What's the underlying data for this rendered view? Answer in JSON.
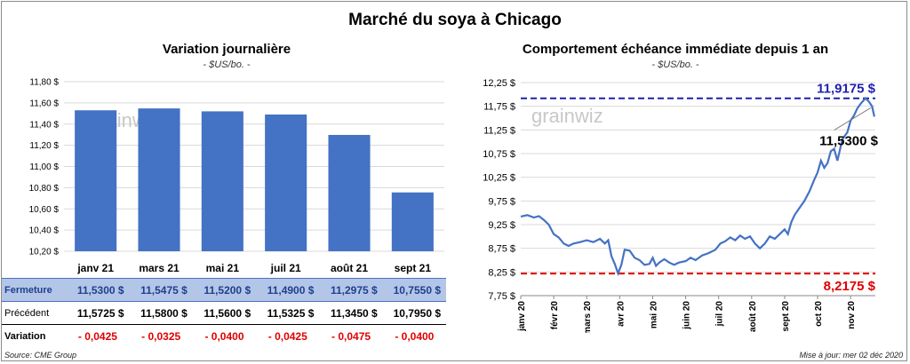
{
  "header": {
    "title": "Marché du soya à Chicago",
    "source": "Source: CME Group",
    "updated": "Mise à jour: mer 02 déc 2020"
  },
  "table": {
    "rows": [
      {
        "label": "Fermeture",
        "values": [
          "11,5300  $",
          "11,5475  $",
          "11,5200  $",
          "11,4900  $",
          "11,2975  $",
          "10,7550  $"
        ]
      },
      {
        "label": "Précédent",
        "values": [
          "11,5725  $",
          "11,5800  $",
          "11,5600  $",
          "11,5325  $",
          "11,3450  $",
          "10,7950  $"
        ]
      },
      {
        "label": "Variation",
        "values": [
          "- 0,0425",
          "- 0,0325",
          "- 0,0400",
          "- 0,0425",
          "- 0,0475",
          "- 0,0400"
        ]
      }
    ]
  },
  "colors": {
    "bar": "#4472c4",
    "line": "#4472c4",
    "high": "#2020b0",
    "low": "#e00000",
    "variation": "#e00000"
  },
  "chart_data": [
    {
      "type": "bar",
      "title": "Variation journalière",
      "subtitle": "- $US/bo. -",
      "watermark": "grainwiz",
      "categories": [
        "janv 21",
        "mars 21",
        "mai 21",
        "juil 21",
        "août 21",
        "sept 21"
      ],
      "values": [
        11.53,
        11.5475,
        11.52,
        11.49,
        11.2975,
        10.755
      ],
      "ylim": [
        10.2,
        11.8
      ],
      "yticks": [
        10.2,
        10.4,
        10.6,
        10.8,
        11.0,
        11.2,
        11.4,
        11.6,
        11.8
      ],
      "ytick_labels": [
        "10,20 $",
        "10,40 $",
        "10,60 $",
        "10,80 $",
        "11,00 $",
        "11,20 $",
        "11,40 $",
        "11,60 $",
        "11,80 $"
      ],
      "grid": true
    },
    {
      "type": "line",
      "title": "Comportement  échéance immédiate depuis 1 an",
      "subtitle": "- $US/bo. -",
      "watermark": "grainwiz",
      "xticks": [
        "janv 20",
        "févr 20",
        "mars 20",
        "avr 20",
        "mai 20",
        "juin 20",
        "juil 20",
        "août 20",
        "sept 20",
        "oct 20",
        "nov 20"
      ],
      "ylim": [
        7.75,
        12.25
      ],
      "yticks": [
        7.75,
        8.25,
        8.75,
        9.25,
        9.75,
        10.25,
        10.75,
        11.25,
        11.75,
        12.25
      ],
      "ytick_labels": [
        "7,75 $",
        "8,25 $",
        "8,75 $",
        "9,25 $",
        "9,75 $",
        "10,25 $",
        "10,75 $",
        "11,25 $",
        "11,75 $",
        "12,25 $"
      ],
      "high": {
        "value": 11.9175,
        "label": "11,9175  $"
      },
      "low": {
        "value": 8.2175,
        "label": "8,2175  $"
      },
      "last": {
        "value": 11.53,
        "label": "11,5300 $"
      },
      "series": [
        {
          "points": [
            [
              0,
              9.42
            ],
            [
              0.2,
              9.45
            ],
            [
              0.4,
              9.4
            ],
            [
              0.55,
              9.43
            ],
            [
              0.7,
              9.35
            ],
            [
              0.85,
              9.25
            ],
            [
              1.0,
              9.05
            ],
            [
              1.15,
              8.98
            ],
            [
              1.3,
              8.85
            ],
            [
              1.45,
              8.8
            ],
            [
              1.6,
              8.85
            ],
            [
              1.8,
              8.88
            ],
            [
              2.0,
              8.92
            ],
            [
              2.2,
              8.88
            ],
            [
              2.4,
              8.95
            ],
            [
              2.55,
              8.85
            ],
            [
              2.65,
              8.92
            ],
            [
              2.75,
              8.58
            ],
            [
              2.85,
              8.42
            ],
            [
              2.95,
              8.22
            ],
            [
              3.05,
              8.4
            ],
            [
              3.15,
              8.72
            ],
            [
              3.3,
              8.7
            ],
            [
              3.45,
              8.55
            ],
            [
              3.6,
              8.5
            ],
            [
              3.75,
              8.4
            ],
            [
              3.9,
              8.42
            ],
            [
              4.0,
              8.55
            ],
            [
              4.1,
              8.38
            ],
            [
              4.2,
              8.45
            ],
            [
              4.35,
              8.52
            ],
            [
              4.5,
              8.45
            ],
            [
              4.65,
              8.4
            ],
            [
              4.8,
              8.45
            ],
            [
              5.0,
              8.48
            ],
            [
              5.15,
              8.55
            ],
            [
              5.3,
              8.5
            ],
            [
              5.5,
              8.6
            ],
            [
              5.7,
              8.65
            ],
            [
              5.9,
              8.72
            ],
            [
              6.05,
              8.85
            ],
            [
              6.2,
              8.9
            ],
            [
              6.35,
              8.98
            ],
            [
              6.5,
              8.92
            ],
            [
              6.65,
              9.02
            ],
            [
              6.8,
              8.95
            ],
            [
              6.95,
              9.0
            ],
            [
              7.1,
              8.85
            ],
            [
              7.25,
              8.75
            ],
            [
              7.4,
              8.85
            ],
            [
              7.55,
              9.0
            ],
            [
              7.7,
              8.95
            ],
            [
              7.85,
              9.05
            ],
            [
              8.0,
              9.15
            ],
            [
              8.1,
              9.05
            ],
            [
              8.2,
              9.3
            ],
            [
              8.3,
              9.45
            ],
            [
              8.45,
              9.6
            ],
            [
              8.6,
              9.75
            ],
            [
              8.75,
              9.95
            ],
            [
              8.9,
              10.2
            ],
            [
              9.0,
              10.35
            ],
            [
              9.1,
              10.6
            ],
            [
              9.2,
              10.45
            ],
            [
              9.3,
              10.55
            ],
            [
              9.4,
              10.8
            ],
            [
              9.5,
              10.85
            ],
            [
              9.6,
              10.6
            ],
            [
              9.75,
              11.05
            ],
            [
              9.9,
              11.2
            ],
            [
              10.0,
              11.45
            ],
            [
              10.1,
              11.55
            ],
            [
              10.2,
              11.7
            ],
            [
              10.3,
              11.8
            ],
            [
              10.45,
              11.92
            ],
            [
              10.55,
              11.85
            ],
            [
              10.65,
              11.75
            ],
            [
              10.72,
              11.53
            ]
          ]
        }
      ]
    }
  ]
}
